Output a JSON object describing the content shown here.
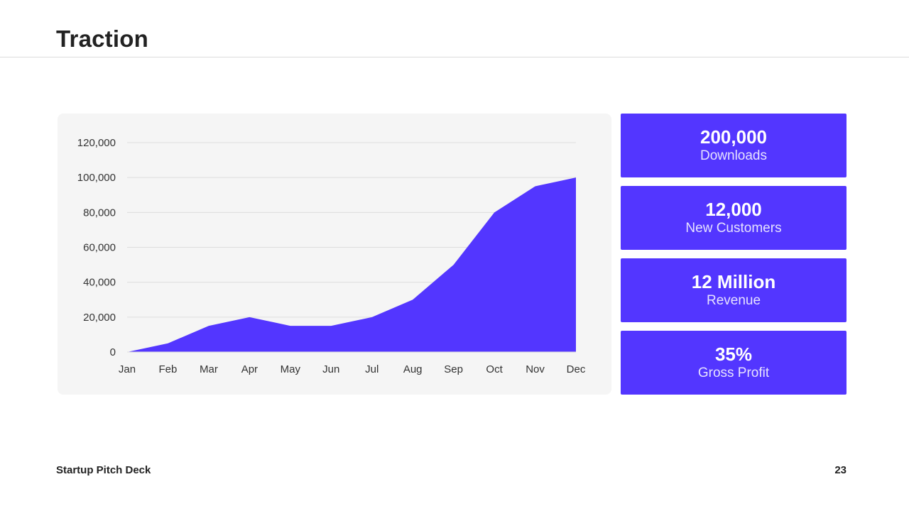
{
  "slide": {
    "title": "Traction",
    "footer_left": "Startup Pitch Deck",
    "page_number": "23"
  },
  "colors": {
    "accent": "#5336ff",
    "panel_background": "#f5f5f5",
    "gridline": "#dddddd"
  },
  "stats": [
    {
      "value": "200,000",
      "label": "Downloads"
    },
    {
      "value": "12,000",
      "label": "New Customers"
    },
    {
      "value": "12 Million",
      "label": "Revenue"
    },
    {
      "value": "35%",
      "label": "Gross Profit"
    }
  ],
  "chart_data": {
    "type": "area",
    "title": "",
    "xlabel": "",
    "ylabel": "",
    "categories": [
      "Jan",
      "Feb",
      "Mar",
      "Apr",
      "May",
      "Jun",
      "Jul",
      "Aug",
      "Sep",
      "Oct",
      "Nov",
      "Dec"
    ],
    "values": [
      0,
      5000,
      15000,
      20000,
      15000,
      15000,
      20000,
      30000,
      50000,
      80000,
      95000,
      100000
    ],
    "ylim": [
      0,
      120000
    ],
    "yticks": [
      0,
      20000,
      40000,
      60000,
      80000,
      100000,
      120000
    ],
    "ytick_labels": [
      "0",
      "20,000",
      "40,000",
      "60,000",
      "80,000",
      "100,000",
      "120,000"
    ],
    "grid": true,
    "legend": "none"
  }
}
